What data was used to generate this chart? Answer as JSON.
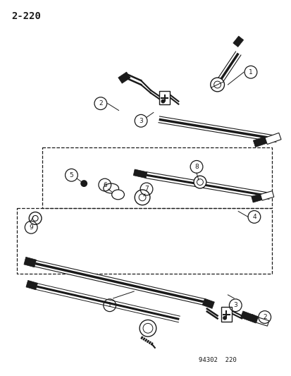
{
  "page_number": "2-220",
  "footer": "94302  220",
  "bg_color": "#ffffff",
  "line_color": "#1a1a1a",
  "fig_width": 4.14,
  "fig_height": 5.33,
  "dpi": 100
}
